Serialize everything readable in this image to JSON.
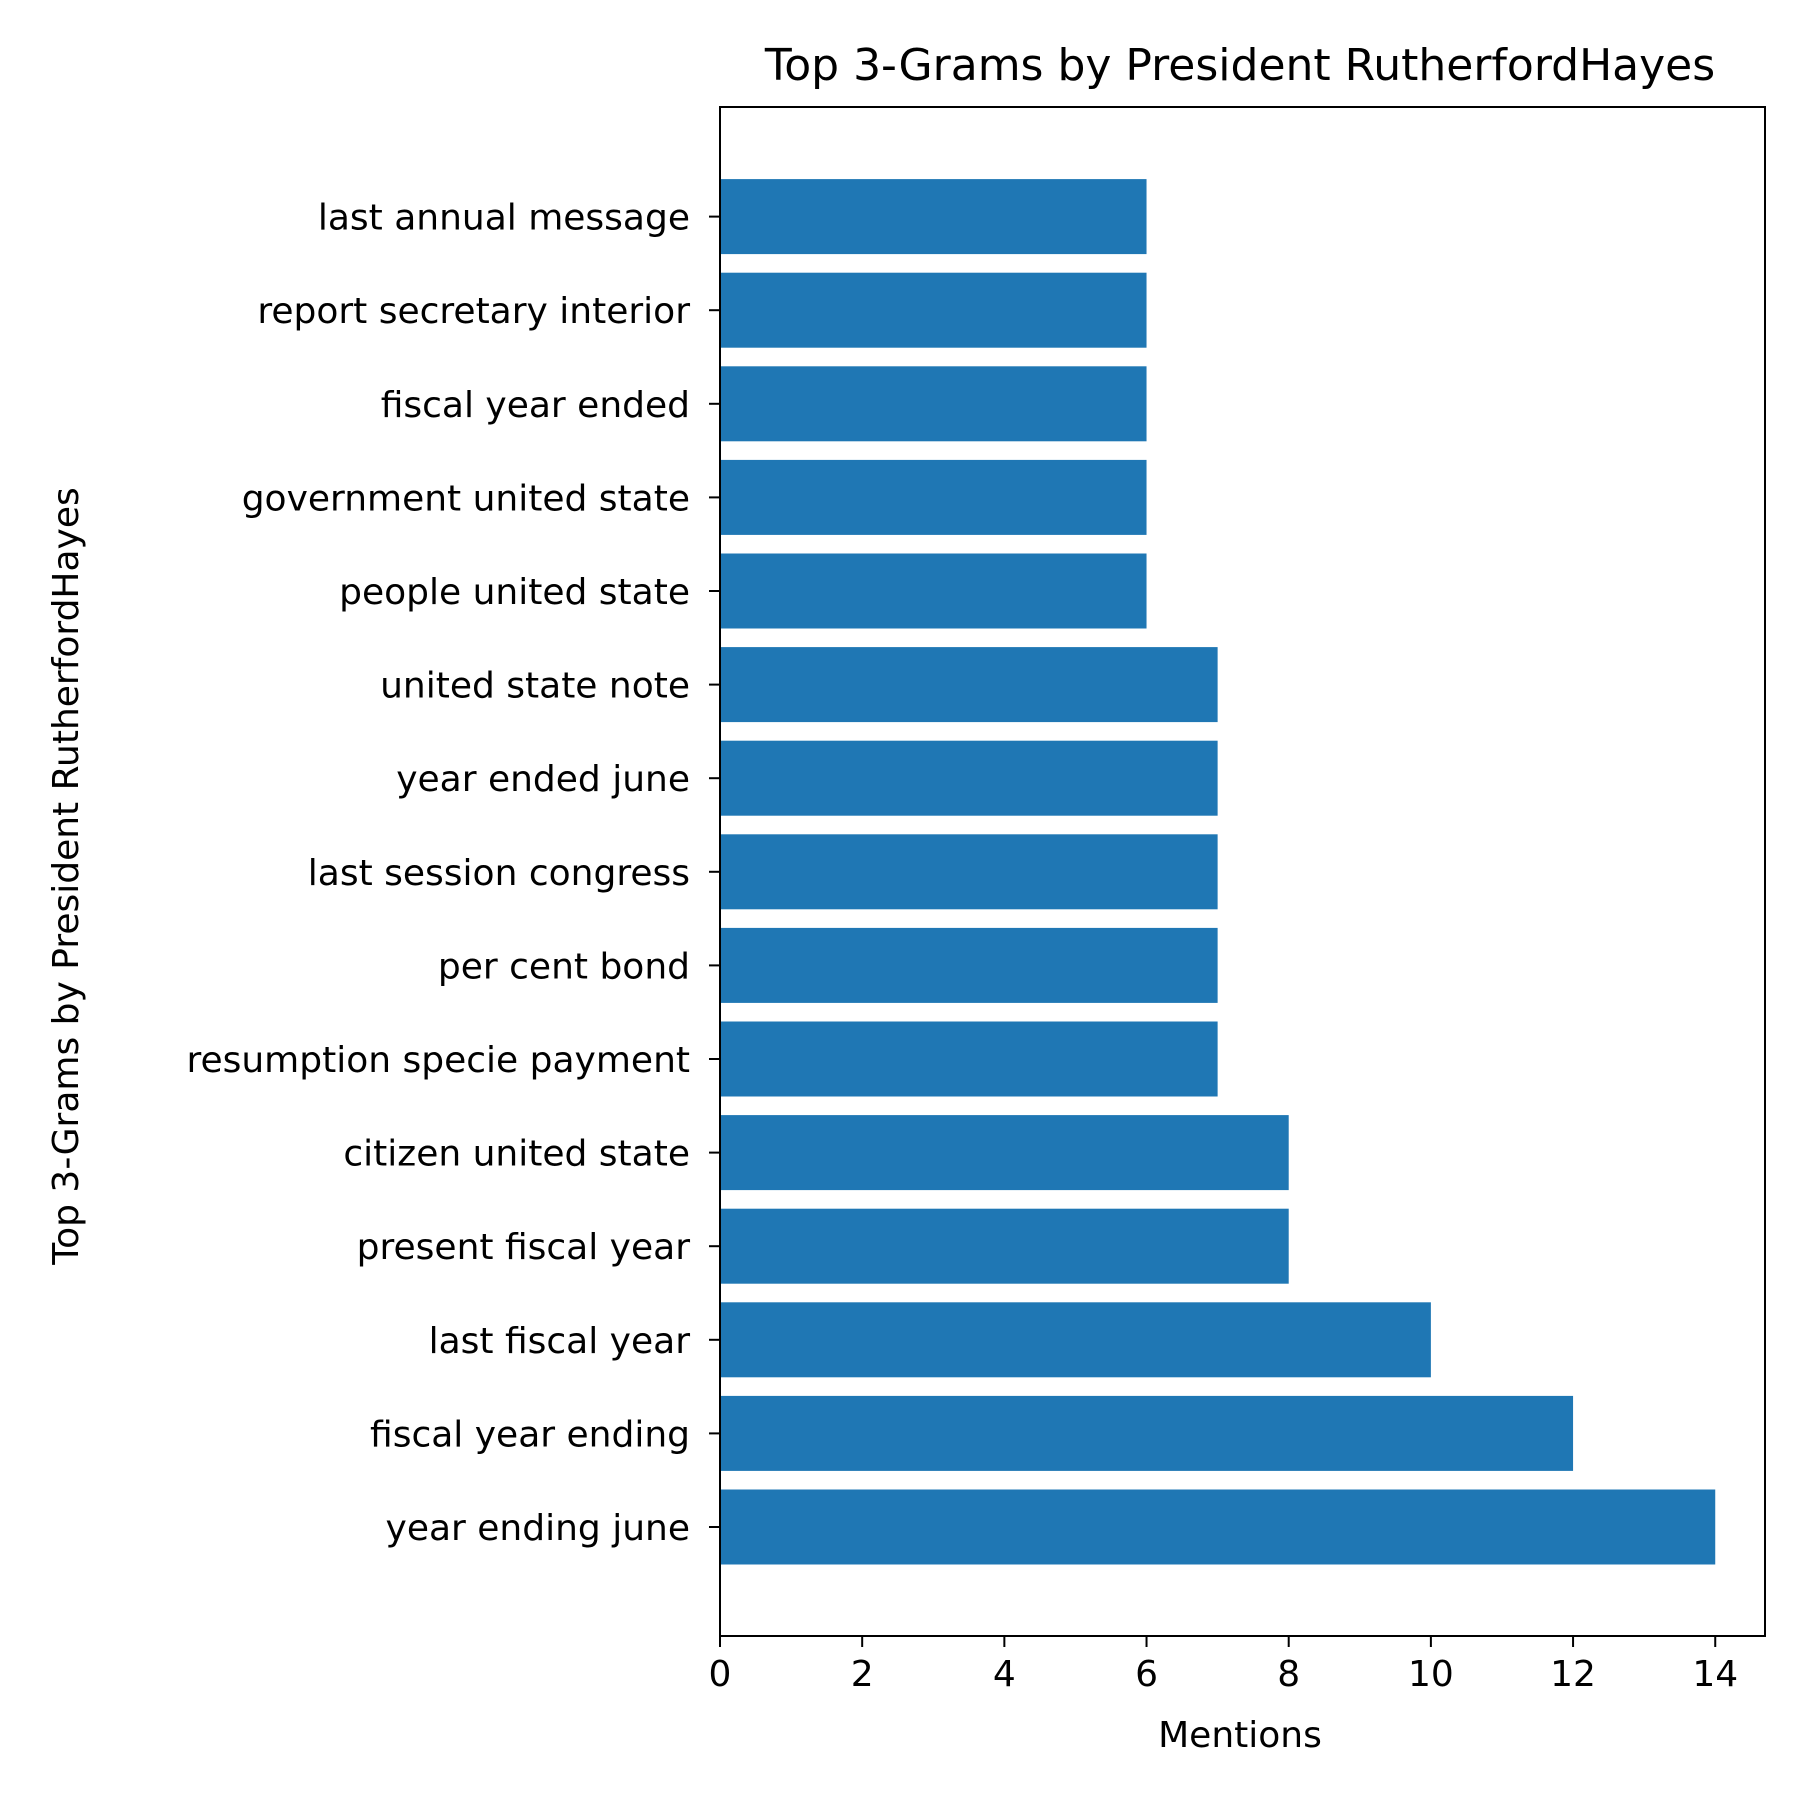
{
  "chart_data": {
    "type": "bar",
    "orientation": "horizontal",
    "title": "Top 3-Grams by President RutherfordHayes",
    "xlabel": "Mentions",
    "ylabel": "Top 3-Grams by President RutherfordHayes",
    "categories": [
      "year ending june",
      "fiscal year ending",
      "last fiscal year",
      "present fiscal year",
      "citizen united state",
      "resumption specie payment",
      "per cent bond",
      "last session congress",
      "year ended june",
      "united state note",
      "people united state",
      "government united state",
      "fiscal year ended",
      "report secretary interior",
      "last annual message"
    ],
    "values": [
      14,
      12,
      10,
      8,
      8,
      7,
      7,
      7,
      7,
      7,
      6,
      6,
      6,
      6,
      6
    ],
    "xlim": [
      0,
      14.7
    ],
    "xticks": [
      0,
      2,
      4,
      6,
      8,
      10,
      12,
      14
    ],
    "bar_color": "#1f77b4",
    "grid": false,
    "legend": "none"
  }
}
